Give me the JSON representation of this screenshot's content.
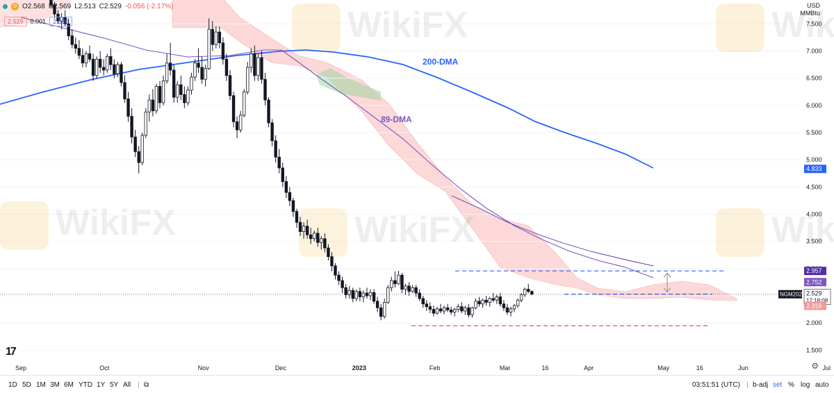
{
  "header": {
    "open": "O2.568",
    "high": "H2.569",
    "low": "L2.513",
    "close": "C2.529",
    "change": "-0.056 (-2.17%)",
    "bid": "2.529",
    "spread": "0.001",
    "ask": "2.530",
    "currency": "USD",
    "unit": "MMBtu"
  },
  "bottom": {
    "timeframes": [
      "1D",
      "5D",
      "1M",
      "3M",
      "6M",
      "YTD",
      "1Y",
      "5Y",
      "All"
    ],
    "time": "03:51:51 (UTC)",
    "options": [
      "b-adj",
      "set",
      "%",
      "log",
      "auto"
    ]
  },
  "colors": {
    "up": "#131722",
    "down": "#131722",
    "dma200": "#2962ff",
    "dma89": "#7e57c2",
    "cloud_bear": "#f8a8a8",
    "cloud_bull": "#9ed6a0",
    "dash_blue": "#2962ff",
    "dash_red": "#e53935"
  },
  "chart_data": {
    "type": "candlestick",
    "symbol": "NGM2023",
    "ylim": [
      1.3,
      7.9
    ],
    "y_ticks": [
      "1.500",
      "2.000",
      "2.500",
      "3.000",
      "3.500",
      "4.000",
      "4.500",
      "5.000",
      "5.500",
      "6.000",
      "6.500",
      "7.000",
      "7.500"
    ],
    "x_ticks": [
      {
        "label": "Sep",
        "x": 0
      },
      {
        "label": "Oct",
        "x": 24
      },
      {
        "label": "Nov",
        "x": 52
      },
      {
        "label": "Dec",
        "x": 74
      },
      {
        "label": "2023",
        "x": 96
      },
      {
        "label": "Feb",
        "x": 118
      },
      {
        "label": "Mar",
        "x": 138
      },
      {
        "label": "16",
        "x": 150
      },
      {
        "label": "Apr",
        "x": 162
      },
      {
        "label": "May",
        "x": 183
      },
      {
        "label": "16",
        "x": 194
      },
      {
        "label": "Jun",
        "x": 206
      },
      {
        "label": "Jul",
        "x": 230
      }
    ],
    "candles": [
      [
        9,
        7.95,
        7.98,
        7.78,
        7.85
      ],
      [
        10,
        7.85,
        7.9,
        7.6,
        7.68
      ],
      [
        11,
        7.68,
        7.75,
        7.5,
        7.55
      ],
      [
        12,
        7.55,
        7.7,
        7.4,
        7.62
      ],
      [
        13,
        7.62,
        7.75,
        7.45,
        7.5
      ],
      [
        14,
        7.5,
        7.6,
        7.2,
        7.28
      ],
      [
        15,
        7.28,
        7.4,
        7.05,
        7.12
      ],
      [
        16,
        7.12,
        7.25,
        6.95,
        7.05
      ],
      [
        17,
        7.05,
        7.2,
        6.85,
        6.92
      ],
      [
        18,
        6.92,
        7.05,
        6.7,
        6.78
      ],
      [
        19,
        6.78,
        7.0,
        6.7,
        6.95
      ],
      [
        20,
        6.95,
        7.1,
        6.8,
        6.85
      ],
      [
        21,
        6.85,
        6.95,
        6.45,
        6.55
      ],
      [
        22,
        6.55,
        6.9,
        6.5,
        6.85
      ],
      [
        23,
        6.85,
        7.0,
        6.6,
        6.7
      ],
      [
        24,
        6.7,
        6.85,
        6.55,
        6.65
      ],
      [
        25,
        6.65,
        6.95,
        6.6,
        6.9
      ],
      [
        26,
        6.9,
        7.05,
        6.65,
        6.75
      ],
      [
        27,
        6.75,
        6.85,
        6.5,
        6.58
      ],
      [
        28,
        6.58,
        6.8,
        6.52,
        6.75
      ],
      [
        29,
        6.75,
        6.8,
        6.35,
        6.42
      ],
      [
        30,
        6.42,
        6.55,
        6.05,
        6.12
      ],
      [
        31,
        6.12,
        6.25,
        5.7,
        5.8
      ],
      [
        32,
        5.8,
        5.95,
        5.3,
        5.42
      ],
      [
        33,
        5.42,
        5.55,
        5.05,
        5.15
      ],
      [
        34,
        5.15,
        5.25,
        4.75,
        4.95
      ],
      [
        35,
        4.95,
        5.5,
        4.9,
        5.45
      ],
      [
        36,
        5.45,
        5.95,
        5.4,
        5.88
      ],
      [
        37,
        5.88,
        6.2,
        5.7,
        6.1
      ],
      [
        38,
        6.1,
        6.3,
        5.8,
        5.9
      ],
      [
        39,
        5.9,
        6.4,
        5.85,
        6.35
      ],
      [
        40,
        6.35,
        6.45,
        5.95,
        6.05
      ],
      [
        41,
        6.05,
        6.55,
        6.0,
        6.45
      ],
      [
        42,
        6.45,
        6.95,
        6.4,
        6.78
      ],
      [
        43,
        6.78,
        7.15,
        6.55,
        6.65
      ],
      [
        44,
        6.65,
        6.75,
        6.05,
        6.15
      ],
      [
        45,
        6.15,
        6.45,
        6.05,
        6.38
      ],
      [
        46,
        6.38,
        6.55,
        6.1,
        6.2
      ],
      [
        47,
        6.2,
        6.35,
        5.95,
        6.05
      ],
      [
        48,
        6.05,
        6.35,
        6.0,
        6.28
      ],
      [
        49,
        6.28,
        6.6,
        6.2,
        6.52
      ],
      [
        50,
        6.52,
        6.85,
        6.45,
        6.78
      ],
      [
        51,
        6.78,
        7.05,
        6.6,
        6.7
      ],
      [
        52,
        6.7,
        6.9,
        6.4,
        6.48
      ],
      [
        53,
        6.48,
        6.75,
        6.35,
        6.68
      ],
      [
        54,
        6.68,
        7.6,
        6.65,
        7.4
      ],
      [
        55,
        7.4,
        7.55,
        7.0,
        7.12
      ],
      [
        56,
        7.12,
        7.45,
        7.05,
        7.35
      ],
      [
        57,
        7.35,
        7.45,
        7.05,
        7.15
      ],
      [
        58,
        7.15,
        7.25,
        6.75,
        6.85
      ],
      [
        59,
        6.85,
        6.95,
        6.45,
        6.55
      ],
      [
        60,
        6.55,
        6.65,
        6.1,
        6.18
      ],
      [
        61,
        6.18,
        6.25,
        5.6,
        5.7
      ],
      [
        62,
        5.7,
        5.8,
        5.4,
        5.55
      ],
      [
        63,
        5.55,
        5.9,
        5.5,
        5.82
      ],
      [
        64,
        5.82,
        6.3,
        5.78,
        6.25
      ],
      [
        65,
        6.25,
        6.8,
        6.2,
        6.7
      ],
      [
        66,
        6.7,
        7.05,
        6.6,
        6.95
      ],
      [
        67,
        6.95,
        7.1,
        6.45,
        6.55
      ],
      [
        68,
        6.55,
        6.95,
        6.45,
        6.88
      ],
      [
        69,
        6.88,
        7.0,
        6.4,
        6.48
      ],
      [
        70,
        6.48,
        6.6,
        6.0,
        6.1
      ],
      [
        71,
        6.1,
        6.15,
        5.6,
        5.68
      ],
      [
        72,
        5.68,
        5.75,
        5.25,
        5.35
      ],
      [
        73,
        5.35,
        5.45,
        4.95,
        5.05
      ],
      [
        74,
        5.05,
        5.2,
        4.75,
        4.85
      ],
      [
        75,
        4.85,
        4.95,
        4.5,
        4.6
      ],
      [
        76,
        4.6,
        4.7,
        4.3,
        4.4
      ],
      [
        77,
        4.4,
        4.5,
        4.15,
        4.25
      ],
      [
        78,
        4.25,
        4.3,
        3.95,
        4.05
      ],
      [
        79,
        4.05,
        4.1,
        3.75,
        3.85
      ],
      [
        80,
        3.85,
        3.95,
        3.6,
        3.68
      ],
      [
        81,
        3.68,
        3.85,
        3.55,
        3.78
      ],
      [
        82,
        3.78,
        3.9,
        3.55,
        3.62
      ],
      [
        83,
        3.62,
        3.75,
        3.45,
        3.55
      ],
      [
        84,
        3.55,
        3.7,
        3.5,
        3.65
      ],
      [
        85,
        3.65,
        3.75,
        3.4,
        3.48
      ],
      [
        86,
        3.48,
        3.6,
        3.35,
        3.55
      ],
      [
        87,
        3.55,
        3.65,
        3.3,
        3.38
      ],
      [
        88,
        3.38,
        3.45,
        3.15,
        3.22
      ],
      [
        89,
        3.22,
        3.3,
        2.95,
        3.05
      ],
      [
        90,
        3.05,
        3.1,
        2.8,
        2.88
      ],
      [
        91,
        2.88,
        2.95,
        2.7,
        2.78
      ],
      [
        92,
        2.78,
        2.85,
        2.55,
        2.65
      ],
      [
        93,
        2.65,
        2.72,
        2.45,
        2.52
      ],
      [
        94,
        2.52,
        2.68,
        2.45,
        2.6
      ],
      [
        95,
        2.6,
        2.65,
        2.38,
        2.45
      ],
      [
        96,
        2.45,
        2.62,
        2.4,
        2.58
      ],
      [
        97,
        2.58,
        2.65,
        2.4,
        2.48
      ],
      [
        98,
        2.48,
        2.6,
        2.38,
        2.55
      ],
      [
        99,
        2.55,
        2.65,
        2.45,
        2.5
      ],
      [
        100,
        2.5,
        2.62,
        2.42,
        2.56
      ],
      [
        101,
        2.56,
        2.62,
        2.35,
        2.4
      ],
      [
        102,
        2.4,
        2.48,
        2.2,
        2.28
      ],
      [
        103,
        2.28,
        2.35,
        2.05,
        2.12
      ],
      [
        104,
        2.12,
        2.45,
        2.08,
        2.38
      ],
      [
        105,
        2.38,
        2.7,
        2.35,
        2.65
      ],
      [
        106,
        2.65,
        2.85,
        2.58,
        2.78
      ],
      [
        107,
        2.78,
        2.95,
        2.65,
        2.72
      ],
      [
        108,
        2.72,
        2.96,
        2.7,
        2.88
      ],
      [
        109,
        2.88,
        2.92,
        2.55,
        2.62
      ],
      [
        110,
        2.62,
        2.72,
        2.52,
        2.68
      ],
      [
        111,
        2.68,
        2.75,
        2.5,
        2.58
      ],
      [
        112,
        2.58,
        2.7,
        2.55,
        2.65
      ],
      [
        113,
        2.65,
        2.7,
        2.48,
        2.55
      ],
      [
        114,
        2.55,
        2.62,
        2.4,
        2.45
      ],
      [
        115,
        2.45,
        2.5,
        2.28,
        2.35
      ],
      [
        116,
        2.35,
        2.42,
        2.22,
        2.3
      ],
      [
        117,
        2.3,
        2.38,
        2.18,
        2.25
      ],
      [
        118,
        2.25,
        2.32,
        2.12,
        2.18
      ],
      [
        119,
        2.18,
        2.3,
        2.15,
        2.26
      ],
      [
        120,
        2.26,
        2.35,
        2.18,
        2.22
      ],
      [
        121,
        2.22,
        2.32,
        2.16,
        2.28
      ],
      [
        122,
        2.28,
        2.35,
        2.2,
        2.24
      ],
      [
        123,
        2.24,
        2.3,
        2.15,
        2.2
      ],
      [
        124,
        2.2,
        2.28,
        2.12,
        2.25
      ],
      [
        125,
        2.25,
        2.35,
        2.2,
        2.3
      ],
      [
        126,
        2.3,
        2.38,
        2.18,
        2.22
      ],
      [
        127,
        2.22,
        2.32,
        2.15,
        2.28
      ],
      [
        128,
        2.28,
        2.35,
        2.1,
        2.15
      ],
      [
        129,
        2.15,
        2.3,
        2.1,
        2.28
      ],
      [
        130,
        2.28,
        2.45,
        2.25,
        2.4
      ],
      [
        131,
        2.4,
        2.48,
        2.3,
        2.35
      ],
      [
        132,
        2.35,
        2.45,
        2.28,
        2.42
      ],
      [
        133,
        2.42,
        2.5,
        2.32,
        2.38
      ],
      [
        134,
        2.38,
        2.48,
        2.3,
        2.45
      ],
      [
        135,
        2.45,
        2.55,
        2.38,
        2.42
      ],
      [
        136,
        2.42,
        2.52,
        2.35,
        2.48
      ],
      [
        137,
        2.48,
        2.55,
        2.3,
        2.35
      ],
      [
        138,
        2.35,
        2.42,
        2.22,
        2.28
      ],
      [
        139,
        2.28,
        2.35,
        2.15,
        2.2
      ],
      [
        140,
        2.2,
        2.3,
        2.12,
        2.26
      ],
      [
        141,
        2.26,
        2.35,
        2.2,
        2.32
      ],
      [
        142,
        2.32,
        2.45,
        2.28,
        2.42
      ],
      [
        143,
        2.42,
        2.55,
        2.38,
        2.52
      ],
      [
        144,
        2.52,
        2.65,
        2.48,
        2.62
      ],
      [
        145,
        2.62,
        2.72,
        2.55,
        2.58
      ],
      [
        146,
        2.58,
        2.6,
        2.51,
        2.53
      ]
    ],
    "overlays": [
      {
        "name": "200-DMA",
        "color": "#2962ff"
      },
      {
        "name": "89-DMA",
        "color": "#7e57c2"
      }
    ],
    "right_labels": [
      {
        "value": 4.833,
        "text": "4.833",
        "color": "#2962ff"
      },
      {
        "value": 2.957,
        "text": "2.957",
        "color": "#512da8"
      },
      {
        "value": 2.752,
        "text": "2.752",
        "color": "#7e57c2"
      },
      {
        "value": 2.529,
        "text": "2.529",
        "color": "#131722",
        "tag": "NGM2023",
        "sub": "17:18:08"
      },
      {
        "value": 2.316,
        "text": "2.316",
        "color": "#ef9a9a"
      }
    ],
    "levels": [
      {
        "value": 2.957,
        "style": "dashed",
        "color": "#2962ff"
      },
      {
        "value": 2.53,
        "style": "dashed",
        "color": "#2962ff"
      },
      {
        "value": 1.95,
        "style": "dashed",
        "color": "#e53935"
      }
    ]
  }
}
